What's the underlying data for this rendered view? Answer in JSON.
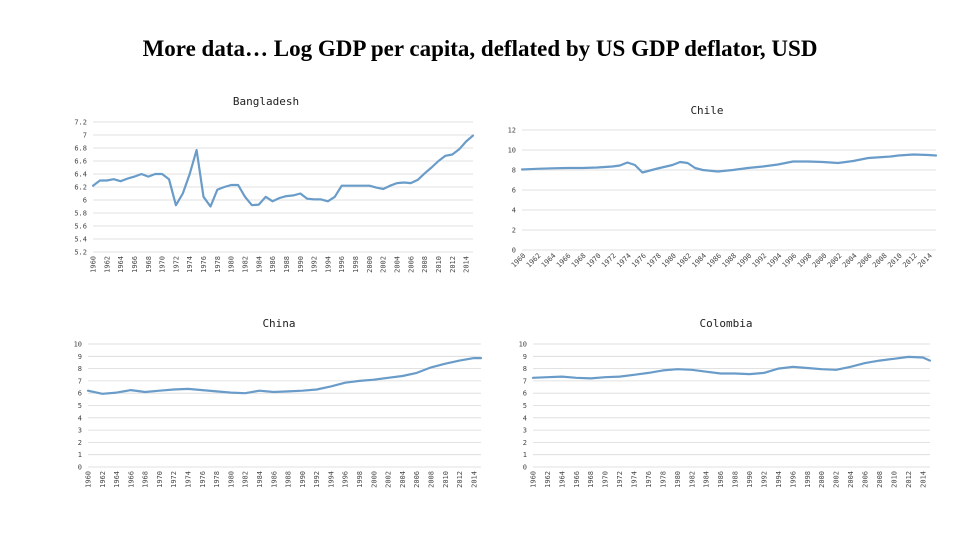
{
  "slide": {
    "title": "More data… Log GDP per capita, deflated by US GDP deflator, USD"
  },
  "style": {
    "line_color": "#6a9cc9",
    "grid_color": "#d9d9d9"
  },
  "chart_data": [
    {
      "type": "line",
      "title": "Bangladesh",
      "ylim": [
        5.2,
        7.2
      ],
      "yticks": [
        5.2,
        5.4,
        5.6,
        5.8,
        6,
        6.2,
        6.4,
        6.6,
        6.8,
        7,
        7.2
      ],
      "ytick_labels": [
        "5.2",
        "5.4",
        "5.6",
        "5.8",
        "6",
        "6.2",
        "6.4",
        "6.6",
        "6.8",
        "7",
        "7.2"
      ],
      "xlim": [
        1960,
        2015
      ],
      "xticks": [
        1960,
        1962,
        1964,
        1966,
        1968,
        1970,
        1972,
        1974,
        1976,
        1978,
        1980,
        1982,
        1984,
        1986,
        1988,
        1990,
        1992,
        1994,
        1996,
        1998,
        2000,
        2002,
        2004,
        2006,
        2008,
        2010,
        2012,
        2014
      ],
      "xtick_rotation": -90,
      "x": [
        1960,
        1961,
        1962,
        1963,
        1964,
        1965,
        1966,
        1967,
        1968,
        1969,
        1970,
        1971,
        1972,
        1973,
        1974,
        1975,
        1976,
        1977,
        1978,
        1979,
        1980,
        1981,
        1982,
        1983,
        1984,
        1985,
        1986,
        1987,
        1988,
        1989,
        1990,
        1991,
        1992,
        1993,
        1994,
        1995,
        1996,
        1997,
        1998,
        1999,
        2000,
        2001,
        2002,
        2003,
        2004,
        2005,
        2006,
        2007,
        2008,
        2009,
        2010,
        2011,
        2012,
        2013,
        2014,
        2015
      ],
      "values": [
        6.22,
        6.3,
        6.3,
        6.32,
        6.29,
        6.33,
        6.36,
        6.4,
        6.36,
        6.4,
        6.4,
        6.32,
        5.92,
        6.1,
        6.4,
        6.77,
        6.05,
        5.9,
        6.16,
        6.2,
        6.23,
        6.23,
        6.05,
        5.92,
        5.93,
        6.05,
        5.98,
        6.03,
        6.06,
        6.07,
        6.1,
        6.02,
        6.01,
        6.01,
        5.98,
        6.05,
        6.22,
        6.22,
        6.22,
        6.22,
        6.22,
        6.19,
        6.17,
        6.22,
        6.26,
        6.27,
        6.26,
        6.31,
        6.41,
        6.5,
        6.6,
        6.68,
        6.7,
        6.78,
        6.9,
        6.99
      ]
    },
    {
      "type": "line",
      "title": "Chile",
      "ylim": [
        0,
        12
      ],
      "yticks": [
        0,
        2,
        4,
        6,
        8,
        10,
        12
      ],
      "ytick_labels": [
        "0",
        "2",
        "4",
        "6",
        "8",
        "10",
        "12"
      ],
      "xlim": [
        1960,
        2015
      ],
      "xticks": [
        1960,
        1962,
        1964,
        1966,
        1968,
        1970,
        1972,
        1974,
        1976,
        1978,
        1980,
        1982,
        1984,
        1986,
        1988,
        1990,
        1992,
        1994,
        1996,
        1998,
        2000,
        2002,
        2004,
        2006,
        2008,
        2010,
        2012,
        2014
      ],
      "xtick_rotation": -45,
      "x": [
        1960,
        1962,
        1964,
        1966,
        1968,
        1970,
        1972,
        1973,
        1974,
        1975,
        1976,
        1978,
        1980,
        1981,
        1982,
        1983,
        1984,
        1986,
        1988,
        1990,
        1992,
        1994,
        1996,
        1998,
        2000,
        2002,
        2004,
        2006,
        2008,
        2009,
        2010,
        2012,
        2014,
        2015
      ],
      "values": [
        8.05,
        8.12,
        8.17,
        8.2,
        8.2,
        8.25,
        8.35,
        8.45,
        8.75,
        8.5,
        7.75,
        8.15,
        8.5,
        8.8,
        8.7,
        8.2,
        8.0,
        7.85,
        8.0,
        8.2,
        8.35,
        8.55,
        8.85,
        8.85,
        8.8,
        8.7,
        8.9,
        9.2,
        9.3,
        9.35,
        9.45,
        9.55,
        9.5,
        9.45
      ]
    },
    {
      "type": "line",
      "title": "China",
      "ylim": [
        0,
        10
      ],
      "yticks": [
        0,
        1,
        2,
        3,
        4,
        5,
        6,
        7,
        8,
        9,
        10
      ],
      "ytick_labels": [
        "0",
        "1",
        "2",
        "3",
        "4",
        "5",
        "6",
        "7",
        "8",
        "9",
        "10"
      ],
      "xlim": [
        1960,
        2015
      ],
      "xticks": [
        1960,
        1962,
        1964,
        1966,
        1968,
        1970,
        1972,
        1974,
        1976,
        1978,
        1980,
        1982,
        1984,
        1986,
        1988,
        1990,
        1992,
        1994,
        1996,
        1998,
        2000,
        2002,
        2004,
        2006,
        2008,
        2010,
        2012,
        2014
      ],
      "xtick_rotation": -90,
      "x": [
        1960,
        1962,
        1964,
        1966,
        1968,
        1970,
        1972,
        1974,
        1976,
        1978,
        1980,
        1982,
        1984,
        1986,
        1988,
        1990,
        1992,
        1994,
        1996,
        1998,
        2000,
        2002,
        2004,
        2006,
        2008,
        2010,
        2012,
        2014,
        2015
      ],
      "values": [
        6.2,
        5.95,
        6.05,
        6.25,
        6.1,
        6.2,
        6.3,
        6.35,
        6.25,
        6.15,
        6.05,
        6.0,
        6.2,
        6.1,
        6.15,
        6.2,
        6.3,
        6.55,
        6.85,
        7.0,
        7.1,
        7.25,
        7.4,
        7.65,
        8.1,
        8.4,
        8.65,
        8.85,
        8.85
      ]
    },
    {
      "type": "line",
      "title": "Colombia",
      "ylim": [
        0,
        10
      ],
      "yticks": [
        0,
        1,
        2,
        3,
        4,
        5,
        6,
        7,
        8,
        9,
        10
      ],
      "ytick_labels": [
        "0",
        "1",
        "2",
        "3",
        "4",
        "5",
        "6",
        "7",
        "8",
        "9",
        "10"
      ],
      "xlim": [
        1960,
        2015
      ],
      "xticks": [
        1960,
        1962,
        1964,
        1966,
        1968,
        1970,
        1972,
        1974,
        1976,
        1978,
        1980,
        1982,
        1984,
        1986,
        1988,
        1990,
        1992,
        1994,
        1996,
        1998,
        2000,
        2002,
        2004,
        2006,
        2008,
        2010,
        2012,
        2014
      ],
      "xtick_rotation": -90,
      "x": [
        1960,
        1962,
        1964,
        1966,
        1968,
        1970,
        1972,
        1974,
        1976,
        1978,
        1980,
        1982,
        1984,
        1986,
        1988,
        1990,
        1992,
        1994,
        1996,
        1998,
        2000,
        2002,
        2004,
        2006,
        2008,
        2010,
        2012,
        2014,
        2015
      ],
      "values": [
        7.25,
        7.3,
        7.35,
        7.25,
        7.2,
        7.3,
        7.35,
        7.5,
        7.65,
        7.85,
        7.95,
        7.9,
        7.75,
        7.6,
        7.6,
        7.55,
        7.65,
        8.0,
        8.15,
        8.05,
        7.95,
        7.9,
        8.15,
        8.45,
        8.65,
        8.8,
        8.95,
        8.9,
        8.65
      ]
    }
  ]
}
